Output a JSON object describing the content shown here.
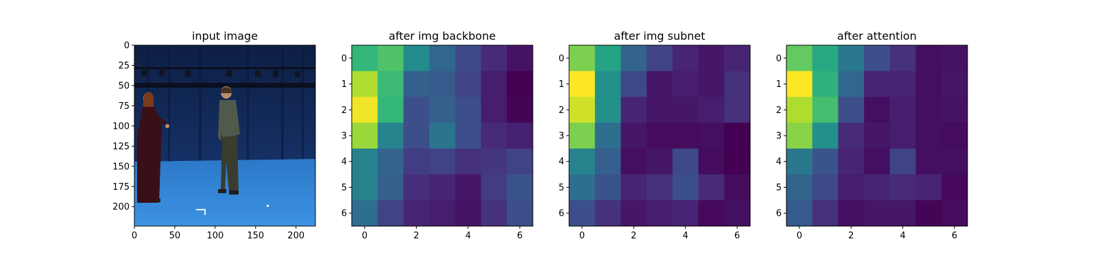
{
  "chart_data": [
    {
      "type": "image",
      "title": "input image",
      "xticks": [
        0,
        50,
        100,
        150,
        200
      ],
      "yticks": [
        0,
        25,
        50,
        75,
        100,
        125,
        150,
        175,
        200
      ],
      "xlim": [
        0,
        224
      ],
      "ylim": [
        224,
        0
      ]
    },
    {
      "type": "heatmap",
      "title": "after img backbone",
      "xticks": [
        0,
        2,
        4,
        6
      ],
      "yticks": [
        0,
        1,
        2,
        3,
        4,
        5,
        6
      ],
      "colormap": "viridis",
      "values": [
        [
          0.66,
          0.72,
          0.48,
          0.33,
          0.22,
          0.12,
          0.05
        ],
        [
          0.88,
          0.68,
          0.3,
          0.28,
          0.2,
          0.08,
          0.0
        ],
        [
          0.98,
          0.66,
          0.24,
          0.3,
          0.24,
          0.08,
          0.01
        ],
        [
          0.85,
          0.45,
          0.24,
          0.38,
          0.24,
          0.12,
          0.09
        ],
        [
          0.45,
          0.32,
          0.18,
          0.2,
          0.14,
          0.16,
          0.2
        ],
        [
          0.45,
          0.3,
          0.13,
          0.1,
          0.06,
          0.18,
          0.26
        ],
        [
          0.36,
          0.2,
          0.1,
          0.08,
          0.05,
          0.14,
          0.24
        ]
      ]
    },
    {
      "type": "heatmap",
      "title": "after img subnet",
      "xticks": [
        0,
        2,
        4,
        6
      ],
      "yticks": [
        0,
        1,
        2,
        3,
        4,
        5,
        6
      ],
      "colormap": "viridis",
      "values": [
        [
          0.8,
          0.58,
          0.32,
          0.2,
          0.1,
          0.06,
          0.1
        ],
        [
          1.0,
          0.5,
          0.22,
          0.06,
          0.08,
          0.06,
          0.14
        ],
        [
          0.93,
          0.5,
          0.1,
          0.06,
          0.06,
          0.08,
          0.14
        ],
        [
          0.8,
          0.36,
          0.06,
          0.03,
          0.03,
          0.04,
          0.0
        ],
        [
          0.45,
          0.3,
          0.04,
          0.06,
          0.22,
          0.03,
          0.0
        ],
        [
          0.36,
          0.26,
          0.1,
          0.14,
          0.24,
          0.12,
          0.03
        ],
        [
          0.24,
          0.14,
          0.06,
          0.08,
          0.1,
          0.02,
          0.04
        ]
      ]
    },
    {
      "type": "heatmap",
      "title": "after attention",
      "xticks": [
        0,
        2,
        4,
        6
      ],
      "yticks": [
        0,
        1,
        2,
        3,
        4,
        5,
        6
      ],
      "colormap": "viridis",
      "values": [
        [
          0.76,
          0.6,
          0.4,
          0.24,
          0.14,
          0.04,
          0.05
        ],
        [
          1.0,
          0.64,
          0.33,
          0.1,
          0.1,
          0.04,
          0.06
        ],
        [
          0.88,
          0.7,
          0.24,
          0.04,
          0.08,
          0.04,
          0.05
        ],
        [
          0.82,
          0.5,
          0.12,
          0.06,
          0.08,
          0.04,
          0.03
        ],
        [
          0.4,
          0.26,
          0.1,
          0.04,
          0.2,
          0.04,
          0.04
        ],
        [
          0.32,
          0.22,
          0.08,
          0.1,
          0.12,
          0.1,
          0.02
        ],
        [
          0.28,
          0.14,
          0.04,
          0.06,
          0.06,
          0.01,
          0.03
        ]
      ]
    }
  ]
}
